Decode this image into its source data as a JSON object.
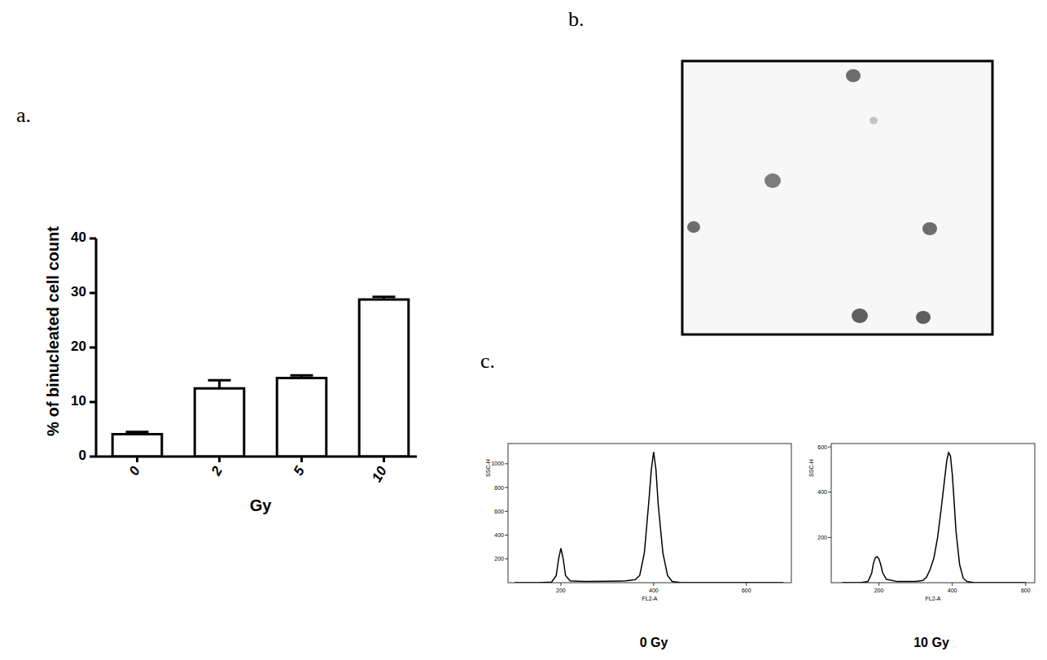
{
  "chart_data": [
    {
      "type": "bar",
      "annotations": [
        "a."
      ],
      "x_label": "Gy",
      "y_label": "% of binucleated cell count",
      "categories": [
        "0",
        "2",
        "5",
        "10"
      ],
      "values": [
        4.1,
        12.5,
        14.4,
        28.8
      ],
      "errors": [
        0.4,
        1.5,
        0.5,
        0.5
      ],
      "color": "#ffffff",
      "ylim": [
        0,
        40
      ],
      "yticks": [
        0,
        10,
        20,
        30,
        40
      ],
      "grid": false
    },
    {
      "type": "line",
      "annotations": [
        "c."
      ],
      "title": "0 Gy",
      "x_label": "FL2-A",
      "y_label": "SSC-H",
      "x": [
        100,
        150,
        180,
        190,
        195,
        200,
        205,
        210,
        220,
        250,
        300,
        340,
        360,
        370,
        380,
        390,
        395,
        400,
        405,
        410,
        420,
        430,
        440,
        460,
        500,
        600,
        680
      ],
      "values": [
        0,
        0,
        5,
        60,
        200,
        290,
        200,
        60,
        15,
        10,
        12,
        15,
        25,
        60,
        250,
        700,
        950,
        1100,
        950,
        650,
        250,
        60,
        10,
        0,
        0,
        0,
        0
      ],
      "color": "#000000",
      "xlim": [
        86,
        697
      ],
      "ylim": [
        0,
        1170
      ],
      "xticks": [
        200,
        400,
        600
      ],
      "yticks": [
        200,
        400,
        600,
        800,
        1000
      ],
      "grid": false
    },
    {
      "type": "line",
      "title": "10 Gy",
      "x_label": "FL2-A",
      "y_label": "SSC-H",
      "x": [
        100,
        150,
        170,
        180,
        185,
        190,
        195,
        200,
        205,
        210,
        220,
        250,
        300,
        320,
        330,
        340,
        350,
        360,
        370,
        380,
        385,
        390,
        395,
        400,
        405,
        410,
        420,
        430,
        440,
        460,
        500,
        600
      ],
      "values": [
        0,
        0,
        5,
        40,
        85,
        110,
        115,
        105,
        80,
        45,
        15,
        5,
        5,
        10,
        25,
        60,
        110,
        200,
        330,
        470,
        540,
        575,
        560,
        480,
        360,
        230,
        80,
        20,
        5,
        0,
        0,
        0
      ],
      "color": "#000000",
      "xlim": [
        70,
        625
      ],
      "ylim": [
        0,
        615
      ],
      "xticks": [
        200,
        400,
        600
      ],
      "yticks": [
        200,
        400,
        600
      ],
      "grid": false
    }
  ],
  "image": {
    "label": "b."
  }
}
